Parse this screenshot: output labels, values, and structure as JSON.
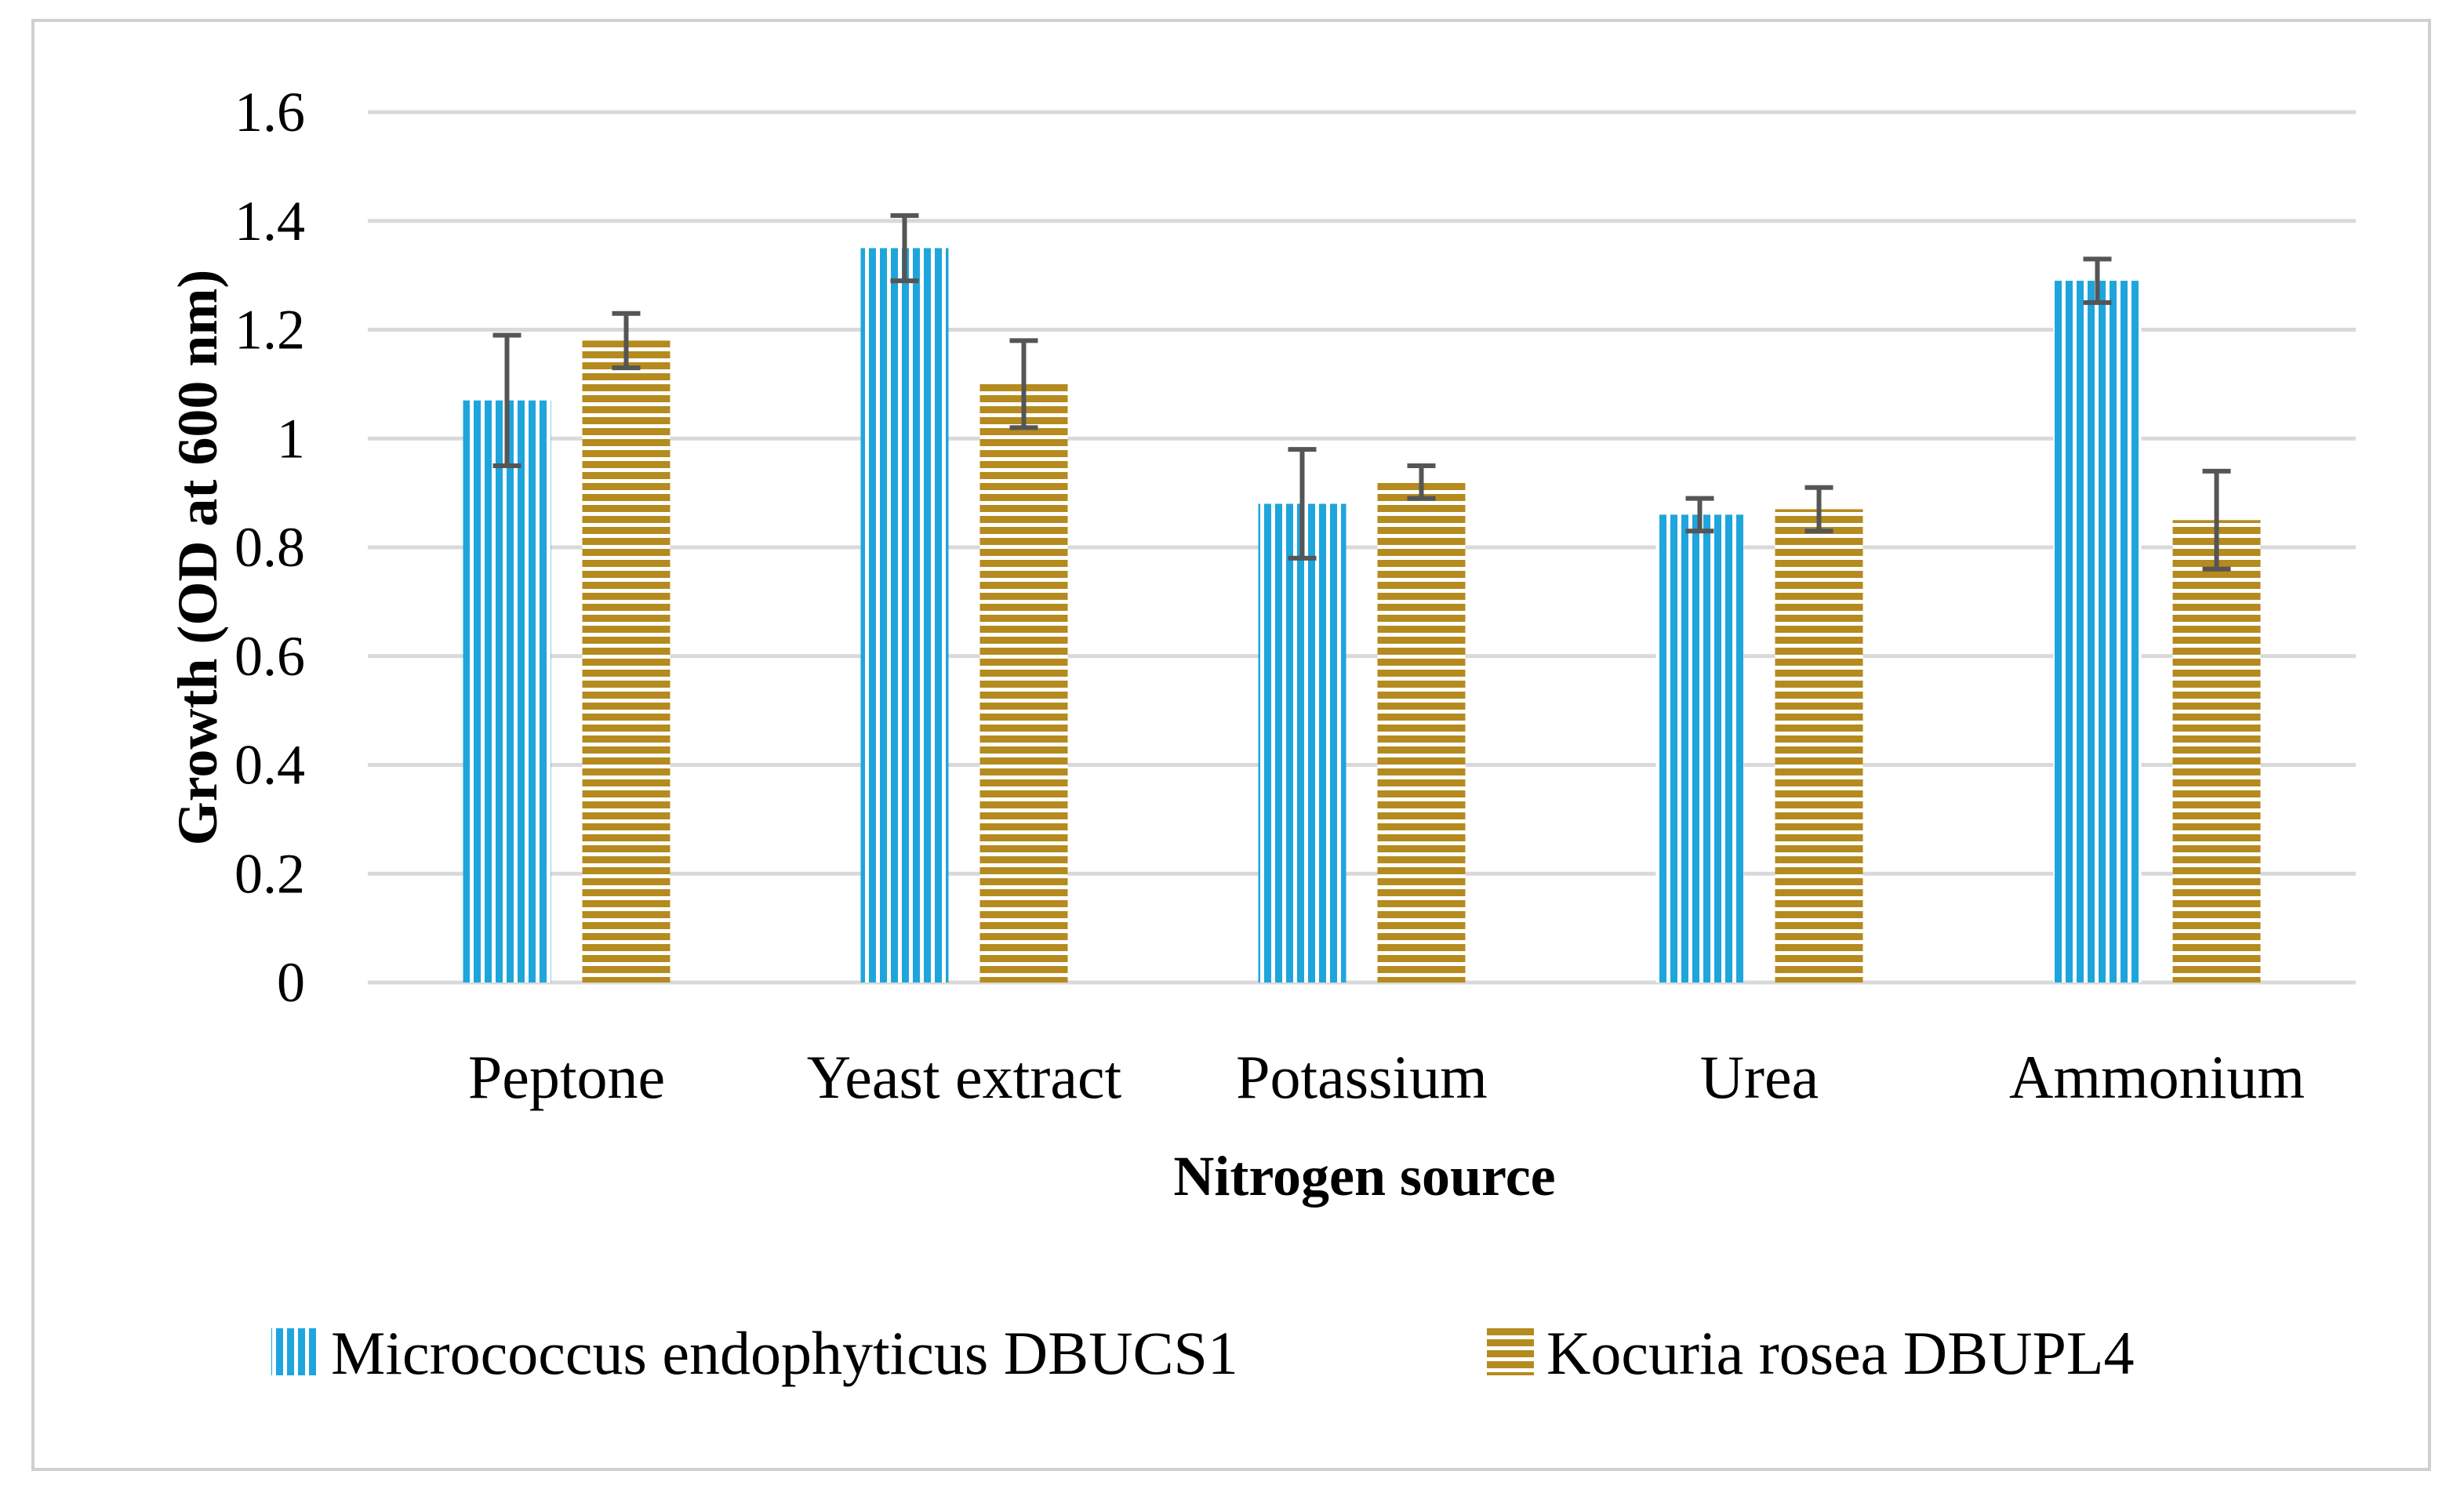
{
  "chart_data": {
    "type": "bar",
    "title": "",
    "xlabel": "Nitrogen source",
    "ylabel": "Growth (OD at 600 nm)",
    "ylim": [
      0,
      1.6
    ],
    "yticks": [
      "0",
      "0.2",
      "0.4",
      "0.6",
      "0.8",
      "1",
      "1.2",
      "1.4",
      "1.6"
    ],
    "grid": true,
    "legend_position": "bottom",
    "categories": [
      "Peptone",
      "Yeast extract",
      "Potassium",
      "Urea",
      "Ammonium"
    ],
    "series": [
      {
        "name": "Micrococcus endophyticus DBUCS1",
        "color": "#1ea5dc",
        "pattern": "vertical-stripes",
        "values": [
          1.07,
          1.35,
          0.88,
          0.86,
          1.29
        ],
        "errors": [
          0.12,
          0.06,
          0.1,
          0.03,
          0.04
        ]
      },
      {
        "name": "Kocuria rosea DBUPL4",
        "color": "#b58a1e",
        "pattern": "horizontal-stripes",
        "values": [
          1.18,
          1.1,
          0.92,
          0.87,
          0.85
        ],
        "errors": [
          0.05,
          0.08,
          0.03,
          0.04,
          0.09
        ]
      }
    ],
    "error_bar_color": "#555555",
    "gridline_color": "#d9d9d9"
  }
}
